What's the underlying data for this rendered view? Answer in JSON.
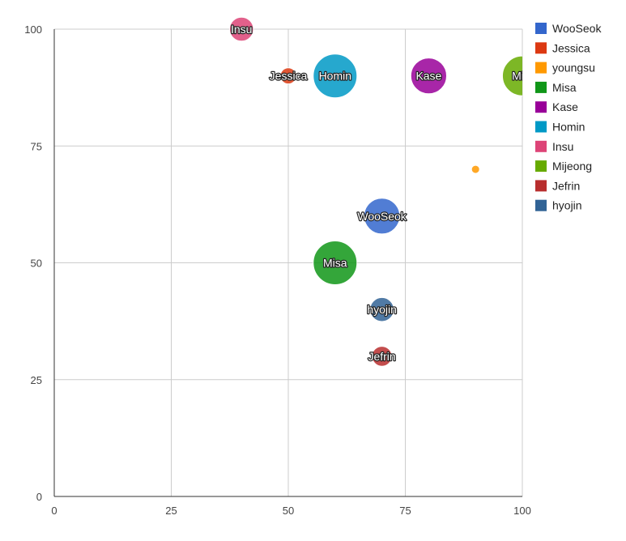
{
  "chart_data": {
    "type": "scatter",
    "subtype": "bubble",
    "title": "",
    "xlabel": "",
    "ylabel": "",
    "xlim": [
      0,
      100
    ],
    "ylim": [
      0,
      100
    ],
    "x_ticks": [
      "0",
      "25",
      "50",
      "75",
      "100"
    ],
    "y_ticks": [
      "0",
      "25",
      "50",
      "75",
      "100"
    ],
    "grid": true,
    "legend_position": "right",
    "series": [
      {
        "name": "WooSeok",
        "color": "#3366cc",
        "x": 70,
        "y": 60,
        "size": 8,
        "label": "WooSeok"
      },
      {
        "name": "Jessica",
        "color": "#dc3912",
        "x": 50,
        "y": 90,
        "size": 3,
        "label": "Jessica"
      },
      {
        "name": "youngsu",
        "color": "#ff9900",
        "x": 90,
        "y": 70,
        "size": 1,
        "label": ""
      },
      {
        "name": "Misa",
        "color": "#109618",
        "x": 60,
        "y": 50,
        "size": 10,
        "label": "Misa"
      },
      {
        "name": "Kase",
        "color": "#990099",
        "x": 80,
        "y": 90,
        "size": 8,
        "label": "Kase"
      },
      {
        "name": "Homin",
        "color": "#0099c6",
        "x": 60,
        "y": 90,
        "size": 10,
        "label": "Homin"
      },
      {
        "name": "Insu",
        "color": "#dd4477",
        "x": 40,
        "y": 100,
        "size": 5,
        "label": "Insu"
      },
      {
        "name": "Mijeong",
        "color": "#66aa00",
        "x": 100,
        "y": 90,
        "size": 9,
        "label": "Mije"
      },
      {
        "name": "Jefrin",
        "color": "#b82e2e",
        "x": 70,
        "y": 30,
        "size": 4,
        "label": "Jefrin"
      },
      {
        "name": "hyojin",
        "color": "#316395",
        "x": 70,
        "y": 40,
        "size": 5,
        "label": "hyojin"
      }
    ]
  }
}
